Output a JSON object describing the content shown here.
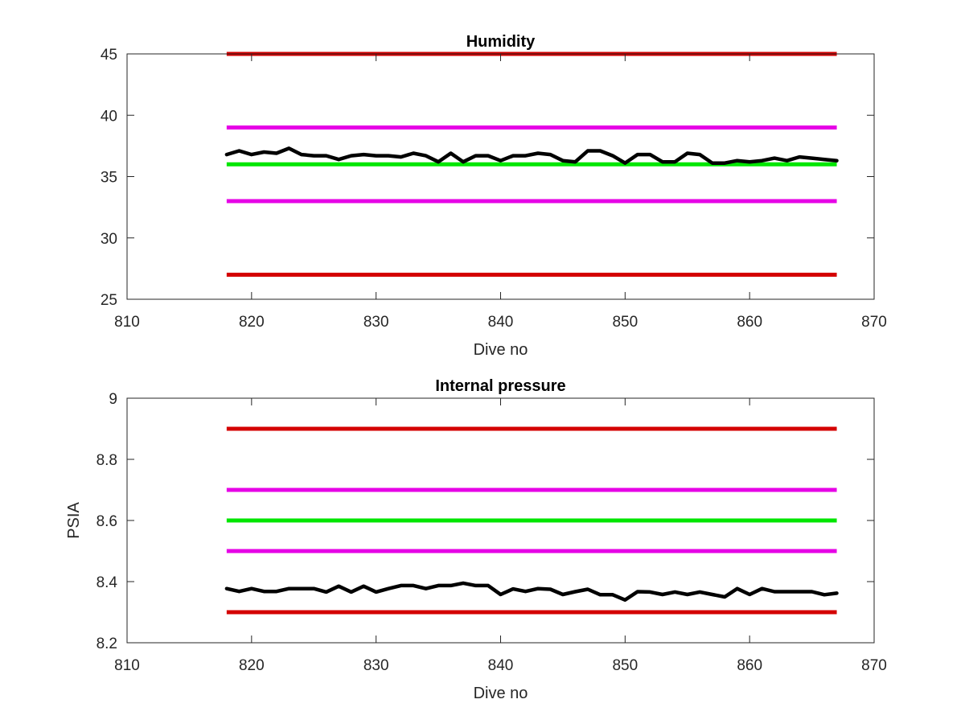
{
  "chart_data": [
    {
      "type": "line",
      "title": "Humidity",
      "xlabel": "Dive no",
      "ylabel": "",
      "xlim": [
        810,
        870
      ],
      "ylim": [
        25,
        45
      ],
      "xticks": [
        810,
        820,
        830,
        840,
        850,
        860,
        870
      ],
      "yticks": [
        25,
        30,
        35,
        40,
        45
      ],
      "grid": false,
      "reference_lines": [
        {
          "y": 45,
          "x_range": [
            818,
            867
          ],
          "color": "#d40000"
        },
        {
          "y": 39,
          "x_range": [
            818,
            867
          ],
          "color": "#e600e6"
        },
        {
          "y": 36,
          "x_range": [
            818,
            867
          ],
          "color": "#00e600"
        },
        {
          "y": 33,
          "x_range": [
            818,
            867
          ],
          "color": "#e600e6"
        },
        {
          "y": 27,
          "x_range": [
            818,
            867
          ],
          "color": "#d40000"
        }
      ],
      "series": [
        {
          "color": "#000000",
          "x": [
            818,
            819,
            820,
            821,
            822,
            823,
            824,
            825,
            826,
            827,
            828,
            829,
            830,
            831,
            832,
            833,
            834,
            835,
            836,
            837,
            838,
            839,
            840,
            841,
            842,
            843,
            844,
            845,
            846,
            847,
            848,
            849,
            850,
            851,
            852,
            853,
            854,
            855,
            856,
            857,
            858,
            859,
            860,
            861,
            862,
            863,
            864,
            865,
            866,
            867
          ],
          "values": [
            36.8,
            37.1,
            36.8,
            37.0,
            36.9,
            37.3,
            36.8,
            36.7,
            36.7,
            36.4,
            36.7,
            36.8,
            36.7,
            36.7,
            36.6,
            36.9,
            36.7,
            36.2,
            36.9,
            36.2,
            36.7,
            36.7,
            36.3,
            36.7,
            36.7,
            36.9,
            36.8,
            36.3,
            36.2,
            37.1,
            37.1,
            36.7,
            36.1,
            36.8,
            36.8,
            36.2,
            36.2,
            36.9,
            36.8,
            36.1,
            36.1,
            36.3,
            36.2,
            36.3,
            36.5,
            36.3,
            36.6,
            36.5,
            36.4,
            36.3
          ]
        }
      ]
    },
    {
      "type": "line",
      "title": "Internal pressure",
      "xlabel": "Dive no",
      "ylabel": "PSIA",
      "xlim": [
        810,
        870
      ],
      "ylim": [
        8.2,
        9
      ],
      "xticks": [
        810,
        820,
        830,
        840,
        850,
        860,
        870
      ],
      "yticks": [
        8.2,
        8.4,
        8.6,
        8.8,
        9
      ],
      "grid": false,
      "reference_lines": [
        {
          "y": 8.9,
          "x_range": [
            818,
            867
          ],
          "color": "#d40000"
        },
        {
          "y": 8.7,
          "x_range": [
            818,
            867
          ],
          "color": "#e600e6"
        },
        {
          "y": 8.6,
          "x_range": [
            818,
            867
          ],
          "color": "#00e600"
        },
        {
          "y": 8.5,
          "x_range": [
            818,
            867
          ],
          "color": "#e600e6"
        },
        {
          "y": 8.3,
          "x_range": [
            818,
            867
          ],
          "color": "#d40000"
        }
      ],
      "series": [
        {
          "color": "#000000",
          "x": [
            818,
            819,
            820,
            821,
            822,
            823,
            824,
            825,
            826,
            827,
            828,
            829,
            830,
            831,
            832,
            833,
            834,
            835,
            836,
            837,
            838,
            839,
            840,
            841,
            842,
            843,
            844,
            845,
            846,
            847,
            848,
            849,
            850,
            851,
            852,
            853,
            854,
            855,
            856,
            857,
            858,
            859,
            860,
            861,
            862,
            863,
            864,
            865,
            866,
            867
          ],
          "values": [
            8.377,
            8.368,
            8.377,
            8.368,
            8.368,
            8.377,
            8.377,
            8.377,
            8.366,
            8.385,
            8.366,
            8.385,
            8.366,
            8.377,
            8.387,
            8.387,
            8.377,
            8.387,
            8.387,
            8.395,
            8.387,
            8.387,
            8.358,
            8.376,
            8.368,
            8.377,
            8.375,
            8.358,
            8.367,
            8.375,
            8.357,
            8.357,
            8.34,
            8.367,
            8.366,
            8.358,
            8.366,
            8.358,
            8.366,
            8.358,
            8.35,
            8.377,
            8.358,
            8.377,
            8.367,
            8.367,
            8.367,
            8.367,
            8.357,
            8.362
          ]
        }
      ]
    }
  ]
}
